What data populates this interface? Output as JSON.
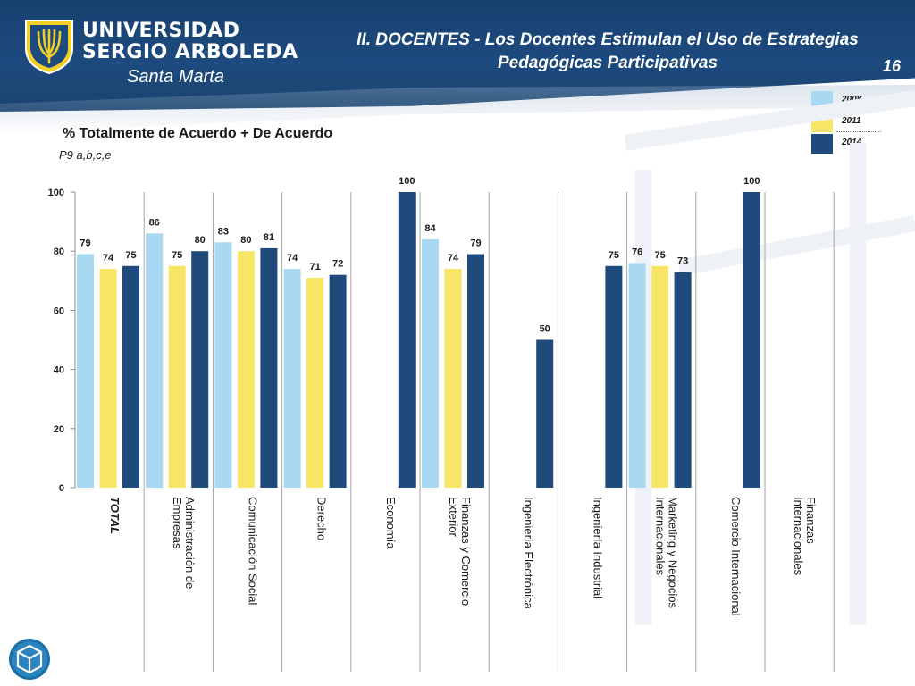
{
  "header": {
    "logo_line1": "UNIVERSIDAD",
    "logo_line2": "SERGIO ARBOLEDA",
    "logo_city": "Santa Marta",
    "title_line1": "II. DOCENTES - Los Docentes Estimulan el Uso de Estrategias",
    "title_line2": "Pedagógicas Participativas",
    "page_number": "16"
  },
  "colors": {
    "header": "#1d4a7e",
    "series_2008": "#a9d8f3",
    "series_2011": "#f7e565",
    "series_2014": "#1e4a7c"
  },
  "chart_data": {
    "type": "bar",
    "title": "% Totalmente de Acuerdo + De Acuerdo",
    "subtitle": "P9 a,b,c,e",
    "categories": [
      "TOTAL",
      "Administración de Empresas",
      "Comunicación Social",
      "Derecho",
      "Economía",
      "Finanzas y Comercio Exterior",
      "Ingeniería Electrónica",
      "Ingeniería Industrial",
      "Marketing y Negocios Internacionales",
      "Comercio Internacional",
      "Finanzas Internacionales"
    ],
    "series": [
      {
        "name": "2008",
        "values": [
          79,
          86,
          83,
          74,
          null,
          84,
          null,
          null,
          76,
          null,
          null
        ]
      },
      {
        "name": "2011",
        "values": [
          74,
          75,
          80,
          71,
          null,
          74,
          null,
          null,
          75,
          null,
          null
        ]
      },
      {
        "name": "2014",
        "values": [
          75,
          80,
          81,
          72,
          100,
          79,
          50,
          75,
          73,
          100,
          null
        ]
      }
    ],
    "ylim": [
      0,
      100
    ],
    "yticks": [
      0,
      20,
      40,
      60,
      80,
      100
    ],
    "legend_position": "top-right",
    "grid": false
  }
}
